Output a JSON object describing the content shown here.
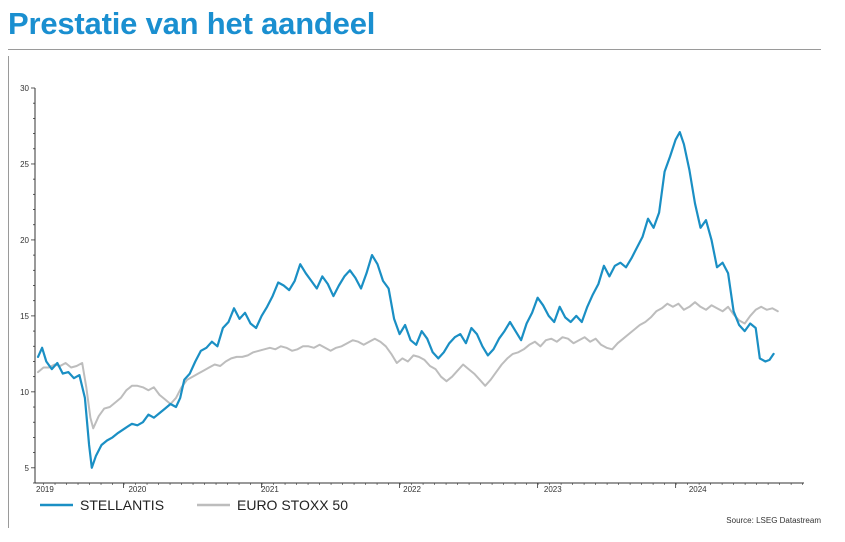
{
  "title": "Prestatie van het aandeel",
  "source": "Source: LSEG Datastream",
  "colors": {
    "title": "#1a8fd0",
    "stellantis": "#1a8fc4",
    "eurostoxx": "#bdbdbd"
  },
  "chart_data": {
    "type": "line",
    "title": "",
    "xlabel": "",
    "ylabel": "",
    "ylim": [
      4,
      30
    ],
    "yticks": [
      5,
      10,
      15,
      20,
      25,
      30
    ],
    "xlim": [
      2019.0,
      2024.55
    ],
    "xticks": [
      {
        "label": "2019",
        "x": 2019.05
      },
      {
        "label": "2020",
        "x": 2019.72
      },
      {
        "label": "2021",
        "x": 2020.68
      },
      {
        "label": "2022",
        "x": 2021.71
      },
      {
        "label": "2023",
        "x": 2022.73
      },
      {
        "label": "2024",
        "x": 2023.78
      }
    ],
    "grid": false,
    "legend": "bottom-left",
    "series": [
      {
        "name": "STELLANTIS",
        "color": "#1a8fc4",
        "points": [
          [
            2019.0,
            12.3
          ],
          [
            2019.03,
            12.9
          ],
          [
            2019.06,
            12.0
          ],
          [
            2019.1,
            11.5
          ],
          [
            2019.14,
            11.9
          ],
          [
            2019.18,
            11.2
          ],
          [
            2019.22,
            11.3
          ],
          [
            2019.26,
            10.9
          ],
          [
            2019.3,
            11.1
          ],
          [
            2019.34,
            9.6
          ],
          [
            2019.37,
            6.5
          ],
          [
            2019.39,
            5.0
          ],
          [
            2019.42,
            5.8
          ],
          [
            2019.46,
            6.5
          ],
          [
            2019.5,
            6.8
          ],
          [
            2019.54,
            7.0
          ],
          [
            2019.58,
            7.3
          ],
          [
            2019.63,
            7.6
          ],
          [
            2019.68,
            7.9
          ],
          [
            2019.72,
            7.8
          ],
          [
            2019.76,
            8.0
          ],
          [
            2019.8,
            8.5
          ],
          [
            2019.84,
            8.3
          ],
          [
            2019.88,
            8.6
          ],
          [
            2019.92,
            8.9
          ],
          [
            2019.96,
            9.2
          ],
          [
            2020.0,
            9.0
          ],
          [
            2020.03,
            9.6
          ],
          [
            2020.06,
            10.8
          ],
          [
            2020.1,
            11.2
          ],
          [
            2020.14,
            12.0
          ],
          [
            2020.18,
            12.7
          ],
          [
            2020.22,
            12.9
          ],
          [
            2020.26,
            13.3
          ],
          [
            2020.3,
            13.0
          ],
          [
            2020.34,
            14.2
          ],
          [
            2020.38,
            14.6
          ],
          [
            2020.42,
            15.5
          ],
          [
            2020.46,
            14.8
          ],
          [
            2020.5,
            15.2
          ],
          [
            2020.54,
            14.5
          ],
          [
            2020.58,
            14.2
          ],
          [
            2020.62,
            15.0
          ],
          [
            2020.66,
            15.6
          ],
          [
            2020.7,
            16.3
          ],
          [
            2020.74,
            17.2
          ],
          [
            2020.78,
            17.0
          ],
          [
            2020.82,
            16.7
          ],
          [
            2020.86,
            17.3
          ],
          [
            2020.9,
            18.4
          ],
          [
            2020.94,
            17.8
          ],
          [
            2020.98,
            17.3
          ],
          [
            2021.02,
            16.8
          ],
          [
            2021.06,
            17.6
          ],
          [
            2021.1,
            17.1
          ],
          [
            2021.14,
            16.3
          ],
          [
            2021.18,
            17.0
          ],
          [
            2021.22,
            17.6
          ],
          [
            2021.26,
            18.0
          ],
          [
            2021.3,
            17.5
          ],
          [
            2021.34,
            16.8
          ],
          [
            2021.38,
            17.8
          ],
          [
            2021.42,
            19.0
          ],
          [
            2021.46,
            18.4
          ],
          [
            2021.5,
            17.3
          ],
          [
            2021.54,
            16.8
          ],
          [
            2021.58,
            14.8
          ],
          [
            2021.62,
            13.8
          ],
          [
            2021.66,
            14.4
          ],
          [
            2021.7,
            13.4
          ],
          [
            2021.74,
            13.1
          ],
          [
            2021.78,
            14.0
          ],
          [
            2021.82,
            13.5
          ],
          [
            2021.86,
            12.6
          ],
          [
            2021.9,
            12.2
          ],
          [
            2021.94,
            12.6
          ],
          [
            2021.98,
            13.2
          ],
          [
            2022.02,
            13.6
          ],
          [
            2022.06,
            13.8
          ],
          [
            2022.1,
            13.2
          ],
          [
            2022.14,
            14.2
          ],
          [
            2022.18,
            13.8
          ],
          [
            2022.22,
            13.0
          ],
          [
            2022.26,
            12.4
          ],
          [
            2022.3,
            12.8
          ],
          [
            2022.34,
            13.5
          ],
          [
            2022.38,
            14.0
          ],
          [
            2022.42,
            14.6
          ],
          [
            2022.46,
            14.0
          ],
          [
            2022.5,
            13.4
          ],
          [
            2022.54,
            14.5
          ],
          [
            2022.58,
            15.2
          ],
          [
            2022.62,
            16.2
          ],
          [
            2022.66,
            15.7
          ],
          [
            2022.7,
            15.0
          ],
          [
            2022.74,
            14.6
          ],
          [
            2022.78,
            15.6
          ],
          [
            2022.82,
            14.9
          ],
          [
            2022.86,
            14.6
          ],
          [
            2022.9,
            15.0
          ],
          [
            2022.94,
            14.6
          ],
          [
            2022.98,
            15.6
          ],
          [
            2023.02,
            16.4
          ],
          [
            2023.06,
            17.1
          ],
          [
            2023.1,
            18.3
          ],
          [
            2023.14,
            17.6
          ],
          [
            2023.18,
            18.3
          ],
          [
            2023.22,
            18.5
          ],
          [
            2023.26,
            18.2
          ],
          [
            2023.3,
            18.8
          ],
          [
            2023.34,
            19.5
          ],
          [
            2023.38,
            20.2
          ],
          [
            2023.42,
            21.4
          ],
          [
            2023.46,
            20.8
          ],
          [
            2023.5,
            21.8
          ],
          [
            2023.54,
            24.5
          ],
          [
            2023.58,
            25.5
          ],
          [
            2023.62,
            26.6
          ],
          [
            2023.65,
            27.1
          ],
          [
            2023.68,
            26.3
          ],
          [
            2023.72,
            24.6
          ],
          [
            2023.76,
            22.4
          ],
          [
            2023.8,
            20.8
          ],
          [
            2023.84,
            21.3
          ],
          [
            2023.88,
            20.0
          ],
          [
            2023.92,
            18.2
          ],
          [
            2023.96,
            18.5
          ],
          [
            2024.0,
            17.8
          ],
          [
            2024.04,
            15.3
          ],
          [
            2024.08,
            14.4
          ],
          [
            2024.12,
            14.0
          ],
          [
            2024.16,
            14.5
          ],
          [
            2024.2,
            14.2
          ],
          [
            2024.23,
            12.2
          ],
          [
            2024.27,
            12.0
          ],
          [
            2024.3,
            12.1
          ],
          [
            2024.33,
            12.5
          ]
        ]
      },
      {
        "name": "EURO STOXX 50",
        "color": "#bdbdbd",
        "points": [
          [
            2019.0,
            11.3
          ],
          [
            2019.04,
            11.6
          ],
          [
            2019.08,
            11.6
          ],
          [
            2019.12,
            11.8
          ],
          [
            2019.16,
            11.7
          ],
          [
            2019.2,
            11.9
          ],
          [
            2019.24,
            11.6
          ],
          [
            2019.28,
            11.7
          ],
          [
            2019.32,
            11.9
          ],
          [
            2019.35,
            10.3
          ],
          [
            2019.38,
            8.3
          ],
          [
            2019.4,
            7.6
          ],
          [
            2019.44,
            8.4
          ],
          [
            2019.48,
            8.9
          ],
          [
            2019.52,
            9.0
          ],
          [
            2019.56,
            9.3
          ],
          [
            2019.6,
            9.6
          ],
          [
            2019.64,
            10.1
          ],
          [
            2019.68,
            10.4
          ],
          [
            2019.72,
            10.4
          ],
          [
            2019.76,
            10.3
          ],
          [
            2019.8,
            10.1
          ],
          [
            2019.84,
            10.3
          ],
          [
            2019.88,
            9.8
          ],
          [
            2019.92,
            9.5
          ],
          [
            2019.96,
            9.2
          ],
          [
            2020.0,
            9.6
          ],
          [
            2020.04,
            10.3
          ],
          [
            2020.08,
            10.8
          ],
          [
            2020.12,
            11.0
          ],
          [
            2020.16,
            11.2
          ],
          [
            2020.2,
            11.4
          ],
          [
            2020.24,
            11.6
          ],
          [
            2020.28,
            11.8
          ],
          [
            2020.32,
            11.7
          ],
          [
            2020.36,
            12.0
          ],
          [
            2020.4,
            12.2
          ],
          [
            2020.44,
            12.3
          ],
          [
            2020.48,
            12.3
          ],
          [
            2020.52,
            12.4
          ],
          [
            2020.56,
            12.6
          ],
          [
            2020.6,
            12.7
          ],
          [
            2020.64,
            12.8
          ],
          [
            2020.68,
            12.9
          ],
          [
            2020.72,
            12.8
          ],
          [
            2020.76,
            13.0
          ],
          [
            2020.8,
            12.9
          ],
          [
            2020.84,
            12.7
          ],
          [
            2020.88,
            12.8
          ],
          [
            2020.92,
            13.0
          ],
          [
            2020.96,
            13.0
          ],
          [
            2021.0,
            12.9
          ],
          [
            2021.04,
            13.1
          ],
          [
            2021.08,
            12.9
          ],
          [
            2021.12,
            12.7
          ],
          [
            2021.16,
            12.9
          ],
          [
            2021.2,
            13.0
          ],
          [
            2021.24,
            13.2
          ],
          [
            2021.28,
            13.4
          ],
          [
            2021.32,
            13.3
          ],
          [
            2021.36,
            13.1
          ],
          [
            2021.4,
            13.3
          ],
          [
            2021.44,
            13.5
          ],
          [
            2021.48,
            13.3
          ],
          [
            2021.52,
            13.0
          ],
          [
            2021.56,
            12.5
          ],
          [
            2021.6,
            11.9
          ],
          [
            2021.64,
            12.2
          ],
          [
            2021.68,
            12.0
          ],
          [
            2021.72,
            12.4
          ],
          [
            2021.76,
            12.3
          ],
          [
            2021.8,
            12.1
          ],
          [
            2021.84,
            11.7
          ],
          [
            2021.88,
            11.5
          ],
          [
            2021.92,
            11.0
          ],
          [
            2021.96,
            10.7
          ],
          [
            2022.0,
            11.0
          ],
          [
            2022.04,
            11.4
          ],
          [
            2022.08,
            11.8
          ],
          [
            2022.12,
            11.5
          ],
          [
            2022.16,
            11.2
          ],
          [
            2022.2,
            10.8
          ],
          [
            2022.24,
            10.4
          ],
          [
            2022.28,
            10.8
          ],
          [
            2022.32,
            11.3
          ],
          [
            2022.36,
            11.8
          ],
          [
            2022.4,
            12.2
          ],
          [
            2022.44,
            12.5
          ],
          [
            2022.48,
            12.6
          ],
          [
            2022.52,
            12.8
          ],
          [
            2022.56,
            13.1
          ],
          [
            2022.6,
            13.3
          ],
          [
            2022.64,
            13.0
          ],
          [
            2022.68,
            13.4
          ],
          [
            2022.72,
            13.5
          ],
          [
            2022.76,
            13.3
          ],
          [
            2022.8,
            13.6
          ],
          [
            2022.84,
            13.5
          ],
          [
            2022.88,
            13.2
          ],
          [
            2022.92,
            13.4
          ],
          [
            2022.96,
            13.6
          ],
          [
            2023.0,
            13.3
          ],
          [
            2023.04,
            13.5
          ],
          [
            2023.08,
            13.1
          ],
          [
            2023.12,
            12.9
          ],
          [
            2023.16,
            12.8
          ],
          [
            2023.2,
            13.2
          ],
          [
            2023.24,
            13.5
          ],
          [
            2023.28,
            13.8
          ],
          [
            2023.32,
            14.1
          ],
          [
            2023.36,
            14.4
          ],
          [
            2023.4,
            14.6
          ],
          [
            2023.44,
            14.9
          ],
          [
            2023.48,
            15.3
          ],
          [
            2023.52,
            15.5
          ],
          [
            2023.56,
            15.8
          ],
          [
            2023.6,
            15.6
          ],
          [
            2023.64,
            15.8
          ],
          [
            2023.68,
            15.4
          ],
          [
            2023.72,
            15.6
          ],
          [
            2023.76,
            15.9
          ],
          [
            2023.8,
            15.6
          ],
          [
            2023.84,
            15.4
          ],
          [
            2023.88,
            15.7
          ],
          [
            2023.92,
            15.5
          ],
          [
            2023.96,
            15.3
          ],
          [
            2024.0,
            15.6
          ],
          [
            2024.04,
            15.1
          ],
          [
            2024.08,
            14.7
          ],
          [
            2024.12,
            14.5
          ],
          [
            2024.16,
            15.0
          ],
          [
            2024.2,
            15.4
          ],
          [
            2024.24,
            15.6
          ],
          [
            2024.28,
            15.4
          ],
          [
            2024.32,
            15.5
          ],
          [
            2024.36,
            15.3
          ]
        ]
      }
    ]
  }
}
